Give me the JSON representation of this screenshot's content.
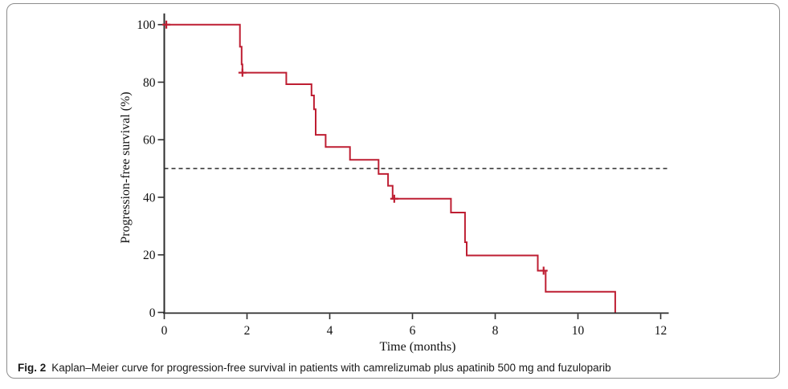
{
  "figure": {
    "caption_label": "Fig. 2",
    "caption_text": "Kaplan–Meier curve for progression-free survival in patients with camrelizumab plus apatinib 500 mg and fuzuloparib"
  },
  "chart_data": {
    "type": "line",
    "subtype": "kaplan_meier_step_curve",
    "title": "",
    "xlabel": "Time (months)",
    "ylabel": "Progression-free survival (%)",
    "xlim": [
      0,
      12
    ],
    "ylim": [
      0,
      100
    ],
    "xticks": [
      0,
      2,
      4,
      6,
      8,
      10,
      12
    ],
    "yticks": [
      0,
      20,
      40,
      60,
      80,
      100
    ],
    "grid": false,
    "legend": "none",
    "reference_line": {
      "y": 50,
      "style": "dashed",
      "color": "#000000"
    },
    "axis_color": "#2e2e2e",
    "series": [
      {
        "color": "#be1e32",
        "step_points": [
          [
            0,
            100
          ],
          [
            1.83,
            100
          ],
          [
            1.83,
            92.3
          ],
          [
            1.87,
            92.3
          ],
          [
            1.87,
            86.2
          ],
          [
            1.89,
            86.2
          ],
          [
            1.89,
            83.3
          ],
          [
            2.95,
            83.3
          ],
          [
            2.95,
            79.3
          ],
          [
            3.56,
            79.3
          ],
          [
            3.56,
            75.4
          ],
          [
            3.62,
            75.4
          ],
          [
            3.62,
            70.6
          ],
          [
            3.66,
            70.6
          ],
          [
            3.66,
            61.7
          ],
          [
            3.9,
            61.7
          ],
          [
            3.9,
            57.5
          ],
          [
            4.49,
            57.5
          ],
          [
            4.49,
            53.0
          ],
          [
            5.18,
            53.0
          ],
          [
            5.18,
            48.1
          ],
          [
            5.41,
            48.1
          ],
          [
            5.41,
            44.0
          ],
          [
            5.52,
            44.0
          ],
          [
            5.52,
            39.5
          ],
          [
            6.93,
            39.5
          ],
          [
            6.93,
            34.7
          ],
          [
            7.27,
            34.7
          ],
          [
            7.27,
            24.4
          ],
          [
            7.31,
            24.4
          ],
          [
            7.31,
            19.8
          ],
          [
            9.03,
            19.8
          ],
          [
            9.03,
            14.5
          ],
          [
            9.22,
            14.5
          ],
          [
            9.22,
            7.2
          ],
          [
            10.9,
            7.2
          ],
          [
            10.9,
            0
          ]
        ],
        "censor_marks": [
          [
            0.05,
            100
          ],
          [
            1.89,
            83.3
          ],
          [
            5.56,
            39.5
          ],
          [
            9.17,
            14.5
          ]
        ]
      }
    ]
  }
}
